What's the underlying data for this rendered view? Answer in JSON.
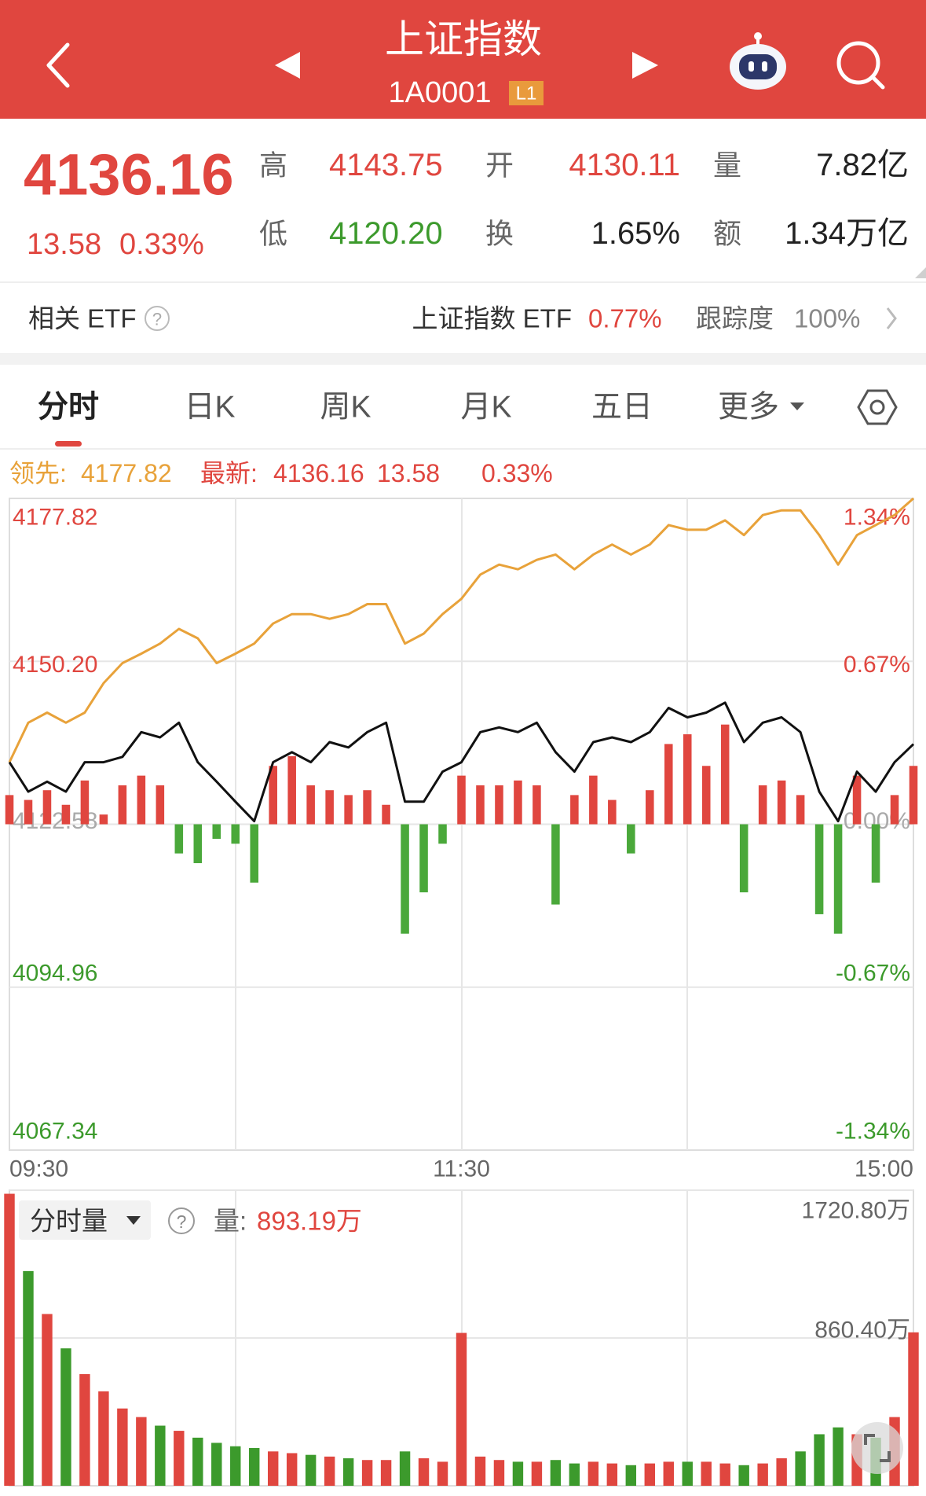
{
  "header": {
    "title": "上证指数",
    "code": "1A0001",
    "badge": "L1"
  },
  "quote": {
    "price": "4136.16",
    "change": "13.58",
    "change_pct": "0.33%",
    "fields": [
      {
        "label": "高",
        "value": "4143.75",
        "color": "#e0463f"
      },
      {
        "label": "开",
        "value": "4130.11",
        "color": "#e0463f"
      },
      {
        "label": "量",
        "value": "7.82亿",
        "color": "#222222"
      },
      {
        "label": "低",
        "value": "4120.20",
        "color": "#3c9a2c"
      },
      {
        "label": "换",
        "value": "1.65%",
        "color": "#222222"
      },
      {
        "label": "额",
        "value": "1.34万亿",
        "color": "#222222"
      }
    ]
  },
  "etf": {
    "label": "相关 ETF",
    "help": "?",
    "name": "上证指数 ETF",
    "change": "0.77%",
    "track_label": "跟踪度",
    "track": "100%"
  },
  "tabs": [
    "分时",
    "日K",
    "周K",
    "月K",
    "五日",
    "更多"
  ],
  "chart_data": [
    {
      "type": "line",
      "categories": [
        "09:30",
        null,
        null,
        null,
        null,
        null,
        null,
        null,
        null,
        null,
        null,
        null,
        null,
        null,
        null,
        null,
        null,
        null,
        null,
        null,
        null,
        null,
        null,
        null,
        "11:30",
        null,
        null,
        null,
        null,
        null,
        null,
        null,
        null,
        null,
        null,
        null,
        null,
        null,
        null,
        null,
        null,
        null,
        null,
        null,
        null,
        null,
        null,
        null,
        "15:00"
      ],
      "ylim": [
        4067.34,
        4177.82
      ],
      "yticks": [
        4177.82,
        {
          "value": 4150.2,
          "label": "4150.20"
        },
        4122.58,
        4094.96,
        4067.34
      ],
      "y2lim": [
        -1.34,
        1.34
      ],
      "y2ticks": [
        {
          "value": 1.34,
          "label": "1.34%"
        },
        {
          "value": 0.67,
          "label": "0.67%"
        },
        {
          "value": 0,
          "label": "0.00%"
        },
        {
          "value": -0.67,
          "label": "-0.67%"
        },
        {
          "value": -1.34,
          "label": "-1.34%"
        }
      ],
      "grid": true,
      "up_color": "#e0463f",
      "down_color": "#3c9a2c",
      "series": [
        {
          "name": "领先:",
          "color": "#e8a23a",
          "values": [
            4133.1,
            4139.8,
            4141.5,
            4139.8,
            4141.5,
            4146.5,
            4149.9,
            4151.5,
            4153.2,
            4155.7,
            4154.1,
            4149.9,
            4151.5,
            4153.2,
            4156.6,
            4158.2,
            4158.2,
            4157.4,
            4158.2,
            4159.9,
            4159.9,
            4153.2,
            4154.9,
            4158.2,
            4160.8,
            4164.9,
            4166.6,
            4165.8,
            4167.4,
            4168.3,
            4165.8,
            4168.3,
            4170,
            4168.3,
            4170,
            4173.3,
            4172.5,
            4172.5,
            4174.1,
            4171.6,
            4175,
            4175.8,
            4175.8,
            4171.6,
            4166.6,
            4171.6,
            4173.3,
            4175,
            4177.82
          ]
        },
        {
          "name": "最新:",
          "color": "#111111",
          "values": [
            4133.1,
            4128.1,
            4129.8,
            4128.1,
            4133.1,
            4133.1,
            4134,
            4138.2,
            4137.3,
            4139.8,
            4133.1,
            4129.8,
            4126.4,
            4123.1,
            4133.1,
            4134.8,
            4133.1,
            4136.5,
            4135.6,
            4138.2,
            4139.8,
            4126.4,
            4126.4,
            4131.5,
            4133.1,
            4138.2,
            4139,
            4138.2,
            4139.8,
            4134.8,
            4131.5,
            4136.5,
            4137.3,
            4136.5,
            4138.2,
            4142.3,
            4140.7,
            4141.5,
            4143.2,
            4136.5,
            4139.8,
            4140.7,
            4138.2,
            4128.1,
            4123.1,
            4131.5,
            4128.1,
            4133.1,
            4136.16
          ]
        },
        {
          "type": "bar",
          "axis": "y2",
          "color": "#e0463f",
          "negative_color": "#4aa83a",
          "values": [
            0.12,
            0.1,
            0.14,
            0.08,
            0.18,
            0.04,
            0.16,
            0.2,
            0.16,
            -0.12,
            -0.16,
            -0.06,
            -0.08,
            -0.24,
            0.24,
            0.28,
            0.16,
            0.14,
            0.12,
            0.14,
            0.08,
            -0.45,
            -0.28,
            -0.08,
            0.2,
            0.16,
            0.16,
            0.18,
            0.16,
            -0.33,
            0.12,
            0.2,
            0.1,
            -0.12,
            0.14,
            0.33,
            0.37,
            0.24,
            0.41,
            -0.28,
            0.16,
            0.18,
            0.12,
            -0.37,
            -0.45,
            0.2,
            -0.24,
            0.12,
            0.24
          ]
        }
      ]
    },
    {
      "type": "bar",
      "title": "分时量",
      "help": "?",
      "current_label": "量:",
      "current": "893.19万",
      "ylim": [
        0,
        1720.8
      ],
      "yticks": [
        {
          "value": 1720.8,
          "label": "1720.80万"
        },
        {
          "value": 860.4,
          "label": "860.40万"
        }
      ],
      "up_color": "#e0463f",
      "down_color": "#3c9a2c",
      "values": [
        1700,
        1250,
        1000,
        800,
        650,
        550,
        450,
        400,
        350,
        320,
        280,
        250,
        230,
        220,
        200,
        190,
        180,
        170,
        160,
        150,
        150,
        200,
        160,
        140,
        890,
        170,
        150,
        140,
        140,
        150,
        130,
        140,
        130,
        120,
        130,
        140,
        140,
        140,
        130,
        120,
        130,
        160,
        200,
        300,
        340,
        300,
        280,
        400,
        893.19
      ]
    }
  ]
}
